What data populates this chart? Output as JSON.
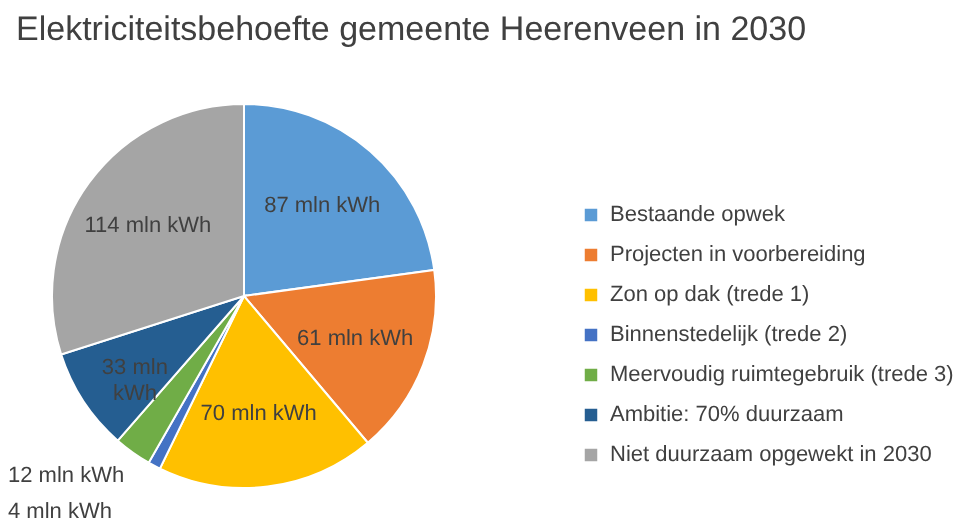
{
  "chart_data": {
    "type": "pie",
    "title": "Elektriciteitsbehoefte gemeente Heerenveen in 2030",
    "categories": [
      "Bestaande opwek",
      "Projecten in voorbereiding",
      "Zon op dak (trede 1)",
      "Binnenstedelijk (trede 2)",
      "Meervoudig ruimtegebruik (trede 3)",
      "Ambitie: 70% duurzaam",
      "Niet duurzaam opgewekt in 2030"
    ],
    "values": [
      87,
      61,
      70,
      4,
      12,
      33,
      114
    ],
    "colors": [
      "#5b9bd5",
      "#ed7d31",
      "#ffc000",
      "#4472c4",
      "#70ad47",
      "#255e91",
      "#a5a5a5"
    ],
    "value_labels": [
      "87 mln kWh",
      "61 mln kWh",
      "70 mln kWh",
      "4 mln kWh",
      "12 mln kWh",
      "33 mln kWh",
      "114 mln kWh"
    ],
    "legend": "right"
  }
}
